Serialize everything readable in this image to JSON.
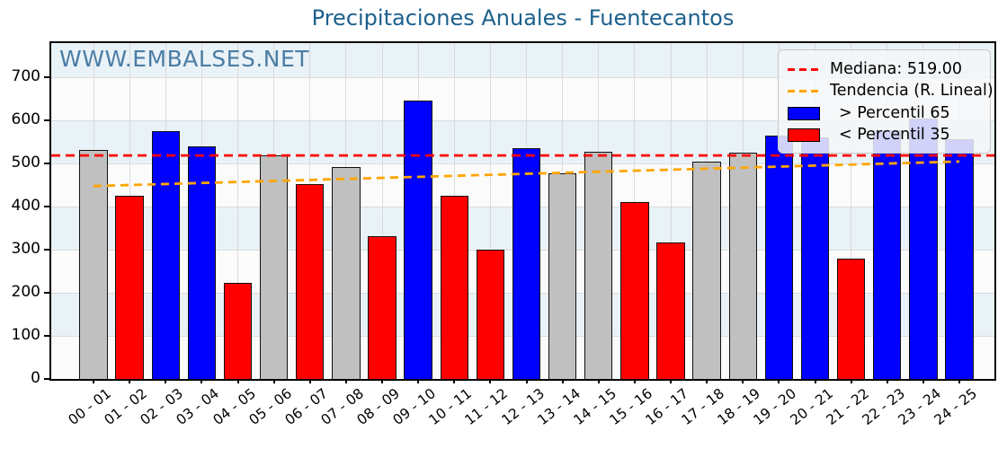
{
  "title": "Precipitaciones Anuales - Fuentecantos",
  "watermark": "WWW.EMBALSES.NET",
  "legend": {
    "median": "Mediana: 519.00",
    "trend": "Tendencia (R. Lineal)",
    "above": "> Percentil 65",
    "below": "< Percentil 35"
  },
  "chart_data": {
    "type": "bar",
    "title": "Precipitaciones Anuales - Fuentecantos",
    "xlabel": "",
    "ylabel": "",
    "categories": [
      "00 - 01",
      "01 - 02",
      "02 - 03",
      "03 - 04",
      "04 - 05",
      "05 - 06",
      "06 - 07",
      "07 - 08",
      "08 - 09",
      "09 - 10",
      "10 - 11",
      "11 - 12",
      "12 - 13",
      "13 - 14",
      "14 - 15",
      "15 - 16",
      "16 - 17",
      "17 - 18",
      "18 - 19",
      "19 - 20",
      "20 - 21",
      "21 - 22",
      "22 - 23",
      "23 - 24",
      "24 - 25"
    ],
    "values": [
      531,
      426,
      575,
      541,
      224,
      519,
      452,
      492,
      331,
      647,
      426,
      301,
      537,
      478,
      528,
      411,
      317,
      505,
      526,
      566,
      561,
      280,
      577,
      605,
      557
    ],
    "bands": [
      "mid",
      "low",
      "high",
      "high",
      "low",
      "mid",
      "low",
      "mid",
      "low",
      "high",
      "low",
      "low",
      "high",
      "mid",
      "mid",
      "low",
      "low",
      "mid",
      "mid",
      "high",
      "high",
      "low",
      "high",
      "high",
      "high"
    ],
    "median": 519.0,
    "trend": {
      "start": 448,
      "end": 505
    },
    "ylim": [
      0,
      780
    ],
    "yticks": [
      0,
      100,
      200,
      300,
      400,
      500,
      600,
      700
    ],
    "grid": true,
    "legend_position": "upper right",
    "colors": {
      "above": "#0000ff",
      "below": "#ff0000",
      "normal": "#c0c0c0",
      "bar_edge": "#111111",
      "median_line": "#ff0000",
      "trend_line": "#ffa500",
      "stripe_light": "#fbfbfb",
      "stripe_blue": "#e9f2f7",
      "gridline": "#d7d7d7",
      "title": "#1c608d",
      "watermark": "#4b7da5"
    }
  }
}
